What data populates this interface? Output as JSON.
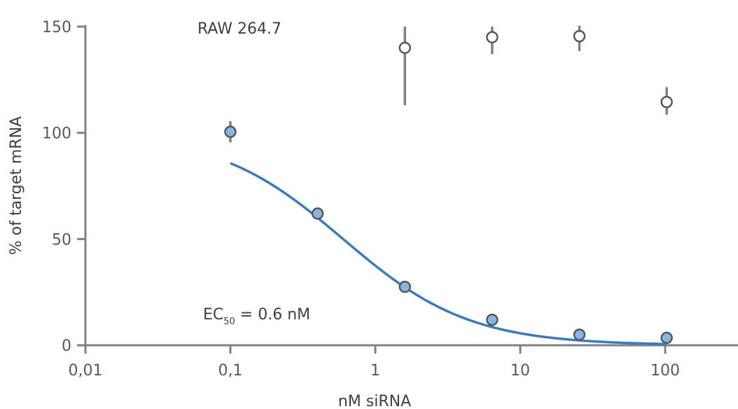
{
  "chart_data": {
    "type": "scatter",
    "xlabel": "nM siRNA",
    "ylabel": "% of target mRNA",
    "x_scale": "log",
    "xlim": [
      0.01,
      1000
    ],
    "ylim": [
      0,
      150
    ],
    "x_ticks": [
      0.01,
      0.1,
      1,
      10,
      100
    ],
    "x_tick_labels": [
      "0,01",
      "0,1",
      "1",
      "10",
      "100"
    ],
    "y_ticks": [
      0,
      50,
      100,
      150
    ],
    "y_tick_labels": [
      "0",
      "50",
      "100",
      "150"
    ],
    "grid": false,
    "series": [
      {
        "marker": "filled-circle",
        "color": "#8cb4e0",
        "points": [
          {
            "x": 0.1,
            "y": 100.5,
            "err": 5
          },
          {
            "x": 0.4,
            "y": 62
          },
          {
            "x": 1.6,
            "y": 27.5
          },
          {
            "x": 6.4,
            "y": 12
          },
          {
            "x": 25.6,
            "y": 5
          },
          {
            "x": 102.4,
            "y": 3.5
          }
        ]
      },
      {
        "marker": "open-circle",
        "color": "#ffffff",
        "points": [
          {
            "x": 1.6,
            "y": 140,
            "err_low": 27,
            "err_high": 10
          },
          {
            "x": 6.4,
            "y": 145,
            "err_low": 8,
            "err_high": 5
          },
          {
            "x": 25.6,
            "y": 145.5,
            "err_low": 7,
            "err_high": 5
          },
          {
            "x": 102.4,
            "y": 114.5,
            "err_low": 6,
            "err_high": 7
          }
        ]
      }
    ],
    "fit_curve": {
      "color": "#3a7abf",
      "model": "four-parameter logistic",
      "ec50": 0.6,
      "top": 100,
      "bottom": 0,
      "hill": 1.0,
      "x_range": [
        0.1,
        102.4
      ]
    },
    "annotations": {
      "cell_line": "RAW 264.7",
      "ec50_prefix": "EC",
      "ec50_sub": "50",
      "ec50_suffix": " = 0.6 nM"
    },
    "colors": {
      "axis": "#7d8288",
      "errorbar": "#7d8288",
      "marker_edge": "#55595e"
    }
  }
}
